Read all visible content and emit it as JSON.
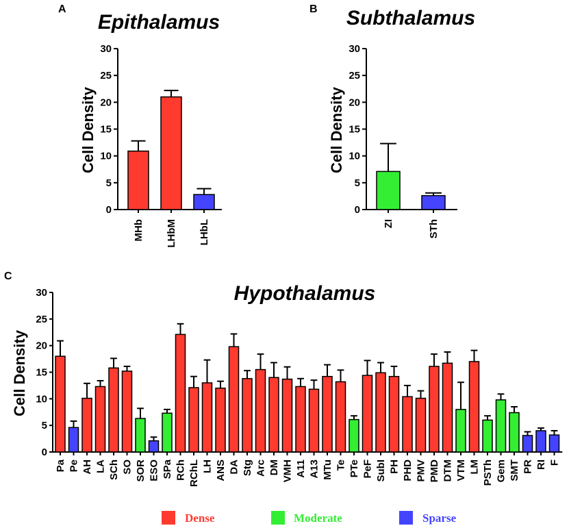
{
  "legend": {
    "items": [
      {
        "label": "Dense",
        "color": "#ff3b30"
      },
      {
        "label": "Moderate",
        "color": "#33ee33"
      },
      {
        "label": "Sparse",
        "color": "#4444ff"
      }
    ]
  },
  "chart_data": [
    {
      "panel": "A",
      "type": "bar",
      "title": "Epithalamus",
      "ylabel": "Cell Density",
      "ylim": [
        0,
        30
      ],
      "yticks": [
        0,
        5,
        10,
        15,
        20,
        25,
        30
      ],
      "categories": [
        "MHb",
        "LHbM",
        "LHbL"
      ],
      "values": [
        10.9,
        21.0,
        2.8
      ],
      "errors": [
        1.9,
        1.2,
        1.1
      ],
      "groups": [
        "Dense",
        "Dense",
        "Sparse"
      ]
    },
    {
      "panel": "B",
      "type": "bar",
      "title": "Subthalamus",
      "ylabel": "Cell Density",
      "ylim": [
        0,
        30
      ],
      "yticks": [
        0,
        5,
        10,
        15,
        20,
        25,
        30
      ],
      "categories": [
        "ZI",
        "STh"
      ],
      "values": [
        7.1,
        2.6
      ],
      "errors": [
        5.2,
        0.5
      ],
      "groups": [
        "Moderate",
        "Sparse"
      ]
    },
    {
      "panel": "C",
      "type": "bar",
      "title": "Hypothalamus",
      "ylabel": "Cell Density",
      "ylim": [
        0,
        30
      ],
      "yticks": [
        0,
        5,
        10,
        15,
        20,
        25,
        30
      ],
      "categories": [
        "Pa",
        "Pe",
        "AH",
        "LA",
        "SCh",
        "SO",
        "SOR",
        "ESO",
        "SPa",
        "RCh",
        "RChL",
        "LH",
        "ANS",
        "DA",
        "Stg",
        "Arc",
        "DM",
        "VMH",
        "A11",
        "A13",
        "MTu",
        "Te",
        "PTe",
        "PeF",
        "SubI",
        "PH",
        "PHD",
        "PMV",
        "PMD",
        "DTM",
        "VTM",
        "LM",
        "PSTh",
        "Gem",
        "SMT",
        "PR",
        "RI",
        "F"
      ],
      "values": [
        18.0,
        4.6,
        10.1,
        12.3,
        15.8,
        15.2,
        6.3,
        2.1,
        7.3,
        22.1,
        12.1,
        13.0,
        12.0,
        19.8,
        13.8,
        15.5,
        14.0,
        13.7,
        12.3,
        11.8,
        14.2,
        13.2,
        6.1,
        14.4,
        14.9,
        14.2,
        10.4,
        10.1,
        16.1,
        16.7,
        8.0,
        17.0,
        6.0,
        9.8,
        7.4,
        3.1,
        4.0,
        3.2
      ],
      "errors": [
        2.9,
        1.2,
        2.8,
        1.1,
        1.8,
        0.9,
        1.9,
        0.7,
        0.7,
        2.0,
        2.1,
        4.3,
        1.3,
        2.4,
        1.5,
        2.9,
        2.8,
        2.3,
        1.5,
        1.7,
        2.2,
        2.2,
        0.7,
        2.8,
        1.9,
        1.9,
        2.1,
        1.4,
        2.3,
        2.1,
        5.1,
        2.1,
        0.8,
        1.1,
        1.1,
        0.7,
        0.5,
        0.8
      ],
      "groups": [
        "Dense",
        "Sparse",
        "Dense",
        "Dense",
        "Dense",
        "Dense",
        "Moderate",
        "Sparse",
        "Moderate",
        "Dense",
        "Dense",
        "Dense",
        "Dense",
        "Dense",
        "Dense",
        "Dense",
        "Dense",
        "Dense",
        "Dense",
        "Dense",
        "Dense",
        "Dense",
        "Moderate",
        "Dense",
        "Dense",
        "Dense",
        "Dense",
        "Dense",
        "Dense",
        "Dense",
        "Moderate",
        "Dense",
        "Moderate",
        "Moderate",
        "Moderate",
        "Sparse",
        "Sparse",
        "Sparse"
      ]
    }
  ]
}
